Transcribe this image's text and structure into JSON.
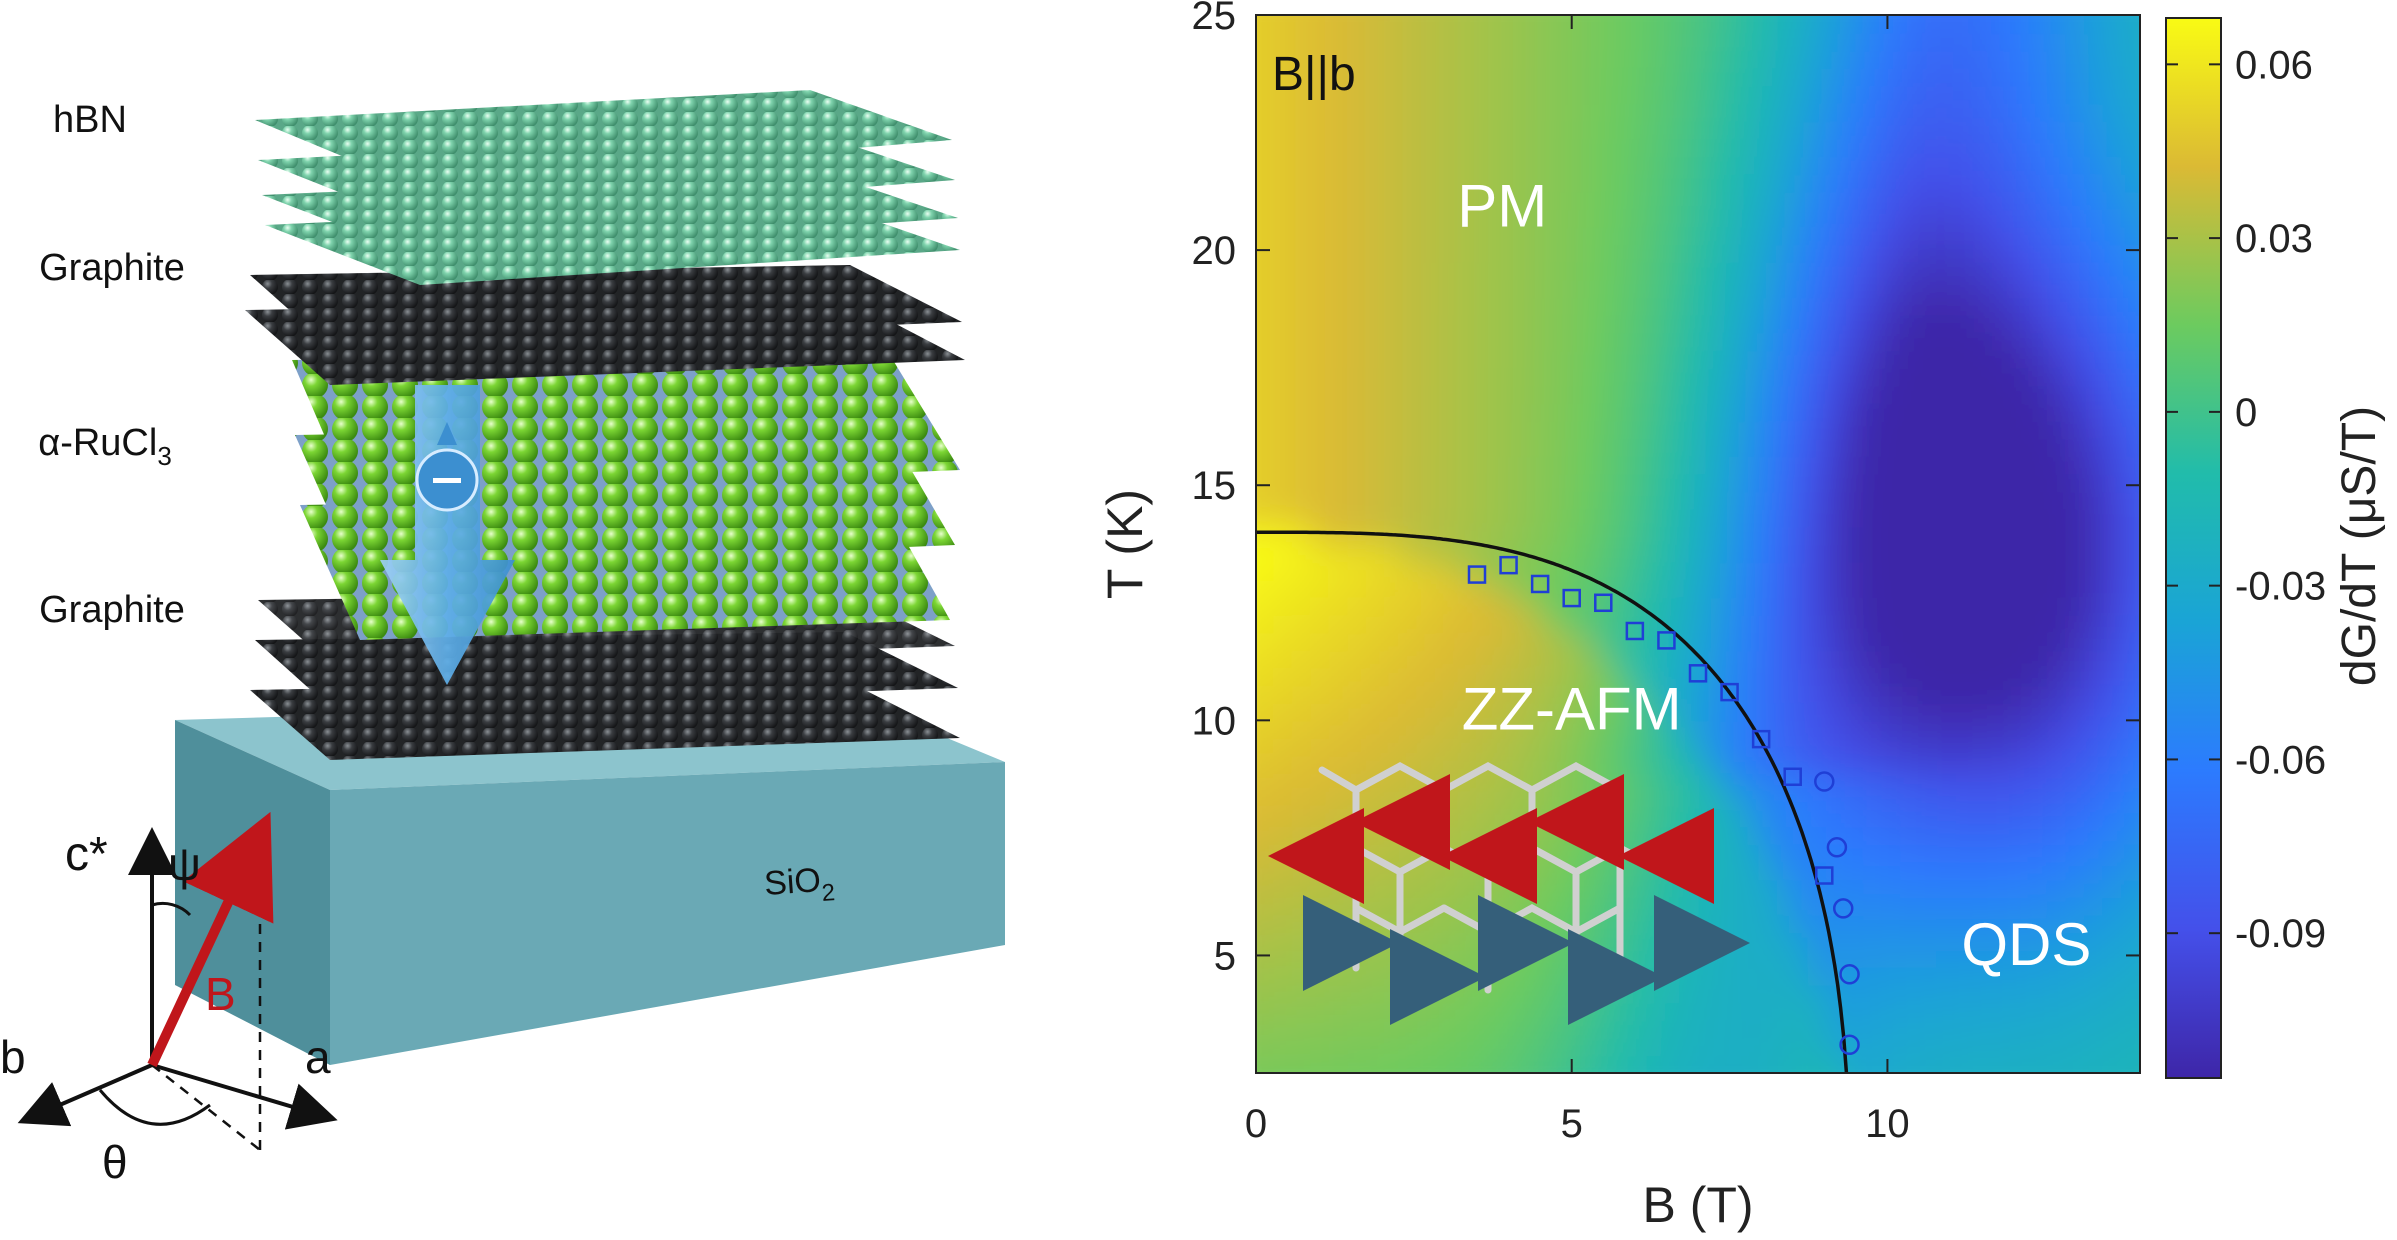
{
  "schematic": {
    "layers": [
      {
        "label": "hBN",
        "color": "#7fd3ad"
      },
      {
        "label": "Graphite",
        "color": "#3a3d41"
      },
      {
        "label": "α-RuCl",
        "sub": "3",
        "color": "#7cd634"
      },
      {
        "label": "Graphite",
        "color": "#3a3d41"
      }
    ],
    "substrate": {
      "label": "SiO",
      "sub": "2",
      "color": "#6aa9b5"
    },
    "axes": {
      "c": "c*",
      "a": "a",
      "b": "b",
      "field": "B",
      "polar": "ψ",
      "azimuth": "θ"
    }
  },
  "chart_data": {
    "type": "heatmap",
    "annotation": "B||b",
    "xlabel": "B (T)",
    "ylabel": "T (K)",
    "colorbar_label": "dG/dT (μS/T)",
    "xlim": [
      0,
      14
    ],
    "ylim": [
      2.5,
      25
    ],
    "xticks": [
      0,
      5,
      10
    ],
    "yticks": [
      5,
      10,
      15,
      20,
      25
    ],
    "colorbar_ticks": [
      0.06,
      0.03,
      0,
      -0.03,
      -0.06,
      -0.09
    ],
    "colorbar_range": [
      -0.115,
      0.068
    ],
    "regions": [
      {
        "label": "PM",
        "B": 3.9,
        "T": 20.5
      },
      {
        "label": "ZZ-AFM",
        "B": 5.0,
        "T": 9.8
      },
      {
        "label": "QDS",
        "B": 12.2,
        "T": 4.8
      }
    ],
    "phase_boundary": {
      "Tc0": 14.0,
      "Bc": 9.4,
      "style": "black solid line"
    },
    "square_markers": [
      {
        "B": 3.5,
        "T": 13.1
      },
      {
        "B": 4.0,
        "T": 13.3
      },
      {
        "B": 4.5,
        "T": 12.9
      },
      {
        "B": 5.0,
        "T": 12.6
      },
      {
        "B": 5.5,
        "T": 12.5
      },
      {
        "B": 6.0,
        "T": 11.9
      },
      {
        "B": 6.5,
        "T": 11.7
      },
      {
        "B": 7.0,
        "T": 11.0
      },
      {
        "B": 7.5,
        "T": 10.6
      },
      {
        "B": 8.0,
        "T": 9.6
      },
      {
        "B": 8.5,
        "T": 8.8
      },
      {
        "B": 9.0,
        "T": 6.7
      }
    ],
    "circle_markers": [
      {
        "B": 9.0,
        "T": 8.7
      },
      {
        "B": 9.2,
        "T": 7.3
      },
      {
        "B": 9.3,
        "T": 6.0
      },
      {
        "B": 9.4,
        "T": 4.6
      },
      {
        "B": 9.4,
        "T": 3.1
      }
    ],
    "marker_color": "#1f3fd6"
  }
}
